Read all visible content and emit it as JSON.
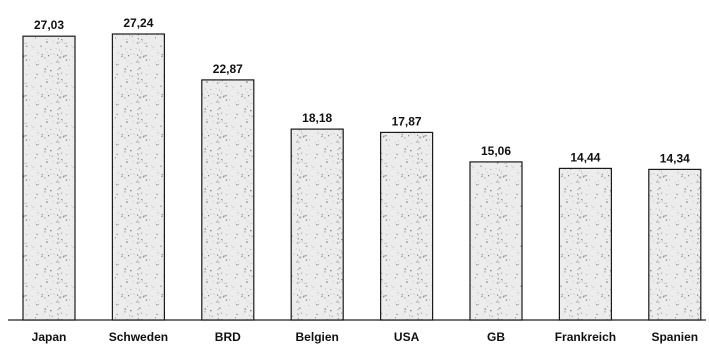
{
  "chart_data": {
    "type": "bar",
    "title": "",
    "xlabel": "",
    "ylabel": "",
    "categories": [
      "Japan",
      "Schweden",
      "BRD",
      "Belgien",
      "USA",
      "GB",
      "Frankreich",
      "Spanien"
    ],
    "values": [
      27.03,
      27.24,
      22.87,
      18.18,
      17.87,
      15.06,
      14.44,
      14.34
    ],
    "value_labels": [
      "27,03",
      "27,24",
      "22,87",
      "18,18",
      "17,87",
      "15,06",
      "14,44",
      "14,34"
    ],
    "ylim": [
      0,
      27.24
    ],
    "grid": false,
    "legend": "none",
    "bar_fill": "#ececec",
    "bar_stroke": "#1a1a1a",
    "noise_color": "#555555"
  }
}
